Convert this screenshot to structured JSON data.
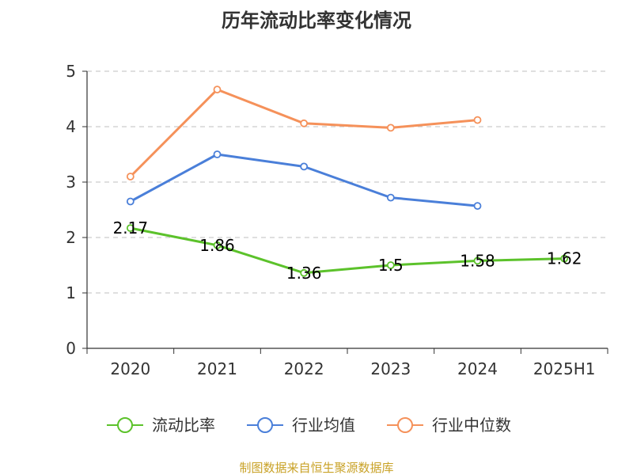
{
  "chart_data": {
    "type": "line",
    "title": "历年流动比率变化情况",
    "categories": [
      "2020",
      "2021",
      "2022",
      "2023",
      "2024",
      "2025H1"
    ],
    "ylim": [
      0,
      5
    ],
    "yticks": [
      "0",
      "1",
      "2",
      "3",
      "4",
      "5"
    ],
    "grid": true,
    "legend_position": "bottom",
    "series": [
      {
        "name": "流动比率",
        "color": "#5cc22b",
        "values": [
          2.17,
          1.86,
          1.36,
          1.5,
          1.58,
          1.62
        ],
        "labels": [
          "2.17",
          "1.86",
          "1.36",
          "1.5",
          "1.58",
          "1.62"
        ]
      },
      {
        "name": "行业均值",
        "color": "#4a7fd9",
        "values": [
          2.65,
          3.5,
          3.28,
          2.72,
          2.57,
          null
        ]
      },
      {
        "name": "行业中位数",
        "color": "#f5915a",
        "values": [
          3.1,
          4.67,
          4.06,
          3.98,
          4.12,
          null
        ]
      }
    ],
    "source": "制图数据来自恒生聚源数据库"
  }
}
